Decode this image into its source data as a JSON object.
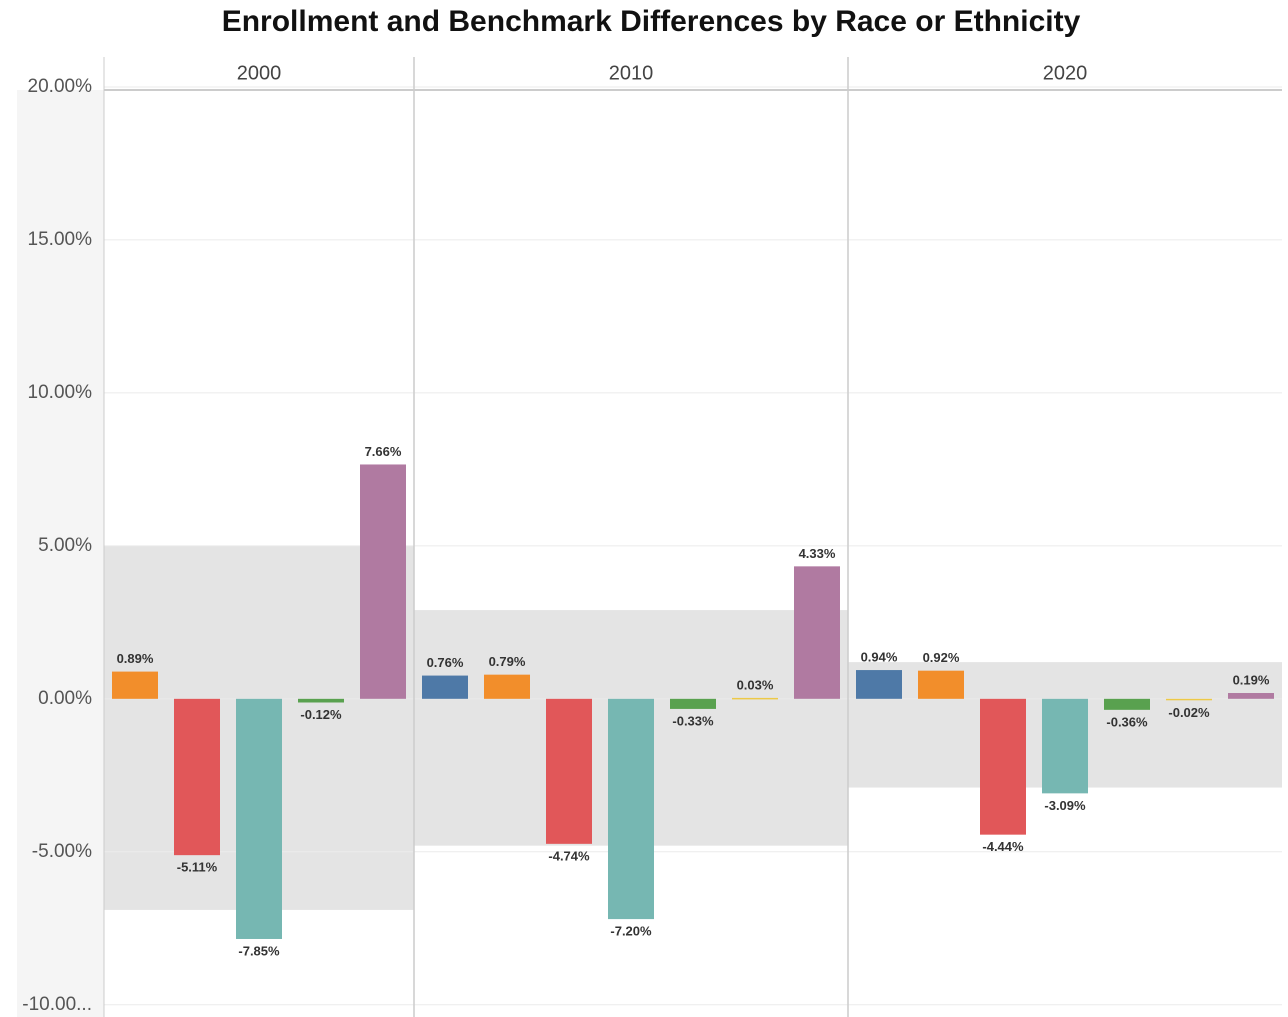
{
  "chart_data": {
    "type": "bar",
    "title": "Enrollment and Benchmark Differences by Race or Ethnicity",
    "facets": [
      "2000",
      "2010",
      "2020"
    ],
    "bands": [
      [
        -6.9,
        5.0
      ],
      [
        -4.8,
        2.9
      ],
      [
        -2.9,
        1.2
      ]
    ],
    "series": [
      {
        "color": "#4e79a7",
        "values": [
          null,
          0.76,
          0.94
        ],
        "value_labels": [
          null,
          "0.76%",
          "0.94%"
        ]
      },
      {
        "color": "#f28e2b",
        "values": [
          0.89,
          0.79,
          0.92
        ],
        "value_labels": [
          "0.89%",
          "0.79%",
          "0.92%"
        ]
      },
      {
        "color": "#e15759",
        "values": [
          -5.11,
          -4.74,
          -4.44
        ],
        "value_labels": [
          "-5.11%",
          "-4.74%",
          "-4.44%"
        ]
      },
      {
        "color": "#76b7b2",
        "values": [
          -7.85,
          -7.2,
          -3.09
        ],
        "value_labels": [
          "-7.85%",
          "-7.20%",
          "-3.09%"
        ]
      },
      {
        "color": "#59a14f",
        "values": [
          -0.12,
          -0.33,
          -0.36
        ],
        "value_labels": [
          "-0.12%",
          "-0.33%",
          "-0.36%"
        ]
      },
      {
        "color": "#edc948",
        "values": [
          null,
          0.03,
          -0.02
        ],
        "value_labels": [
          null,
          "0.03%",
          "-0.02%"
        ]
      },
      {
        "color": "#b07aa1",
        "values": [
          7.66,
          4.33,
          0.19
        ],
        "value_labels": [
          "7.66%",
          "4.33%",
          "0.19%"
        ]
      }
    ],
    "ylim": [
      -10.4,
      19.9
    ],
    "yticks": [
      {
        "value": -10,
        "label": "-10.00..."
      },
      {
        "value": -5,
        "label": "-5.00%"
      },
      {
        "value": 0,
        "label": "0.00%"
      },
      {
        "value": 5,
        "label": "5.00%"
      },
      {
        "value": 10,
        "label": "10.00%"
      },
      {
        "value": 15,
        "label": "15.00%"
      },
      {
        "value": 20,
        "label": "20.00%"
      }
    ],
    "grid": true
  }
}
